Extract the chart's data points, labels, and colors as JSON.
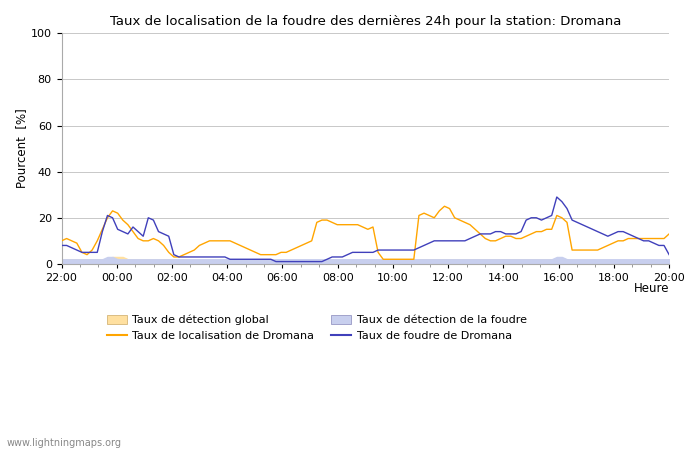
{
  "title": "Taux de localisation de la foudre des dernières 24h pour la station: Dromana",
  "xlabel": "Heure",
  "ylabel": "Pourcent  [%]",
  "ylim": [
    0,
    100
  ],
  "yticks": [
    0,
    20,
    40,
    60,
    80,
    100
  ],
  "xtick_labels": [
    "22:00",
    "00:00",
    "02:00",
    "04:00",
    "06:00",
    "08:00",
    "10:00",
    "12:00",
    "14:00",
    "16:00",
    "18:00",
    "20:00"
  ],
  "watermark": "www.lightningmaps.org",
  "bg_color": "#ffffff",
  "plot_bg_color": "#ffffff",
  "grid_color": "#c8c8c8",
  "orange_line_color": "#ffa500",
  "blue_line_color": "#4040bb",
  "orange_fill_color": "#ffe0a0",
  "blue_fill_color": "#c8cfee",
  "legend_items": [
    {
      "label": "Taux de détection global",
      "type": "fill",
      "color": "#ffe0a0"
    },
    {
      "label": "Taux de localisation de Dromana",
      "type": "line",
      "color": "#ffa500"
    },
    {
      "label": "Taux de détection de la foudre",
      "type": "fill",
      "color": "#c8cfee"
    },
    {
      "label": "Taux de foudre de Dromana",
      "type": "line",
      "color": "#4040bb"
    }
  ],
  "n_points": 120,
  "hours_total": 26,
  "orange_line": [
    10,
    11,
    10,
    9,
    5,
    4,
    6,
    10,
    15,
    20,
    23,
    22,
    19,
    17,
    14,
    11,
    10,
    10,
    11,
    10,
    8,
    5,
    3,
    3,
    4,
    5,
    6,
    8,
    9,
    10,
    10,
    10,
    10,
    10,
    9,
    8,
    7,
    6,
    5,
    4,
    4,
    4,
    4,
    5,
    5,
    6,
    7,
    8,
    9,
    10,
    18,
    19,
    19,
    18,
    17,
    17,
    17,
    17,
    17,
    16,
    15,
    16,
    5,
    2,
    2,
    2,
    2,
    2,
    2,
    2,
    21,
    22,
    21,
    20,
    23,
    25,
    24,
    20,
    19,
    18,
    17,
    15,
    13,
    11,
    10,
    10,
    11,
    12,
    12,
    11,
    11,
    12,
    13,
    14,
    14,
    15,
    15,
    21,
    20,
    18,
    6,
    6,
    6,
    6,
    6,
    6,
    7,
    8,
    9,
    10,
    10,
    11,
    11,
    11,
    11,
    11,
    11,
    11,
    11,
    13
  ],
  "blue_line": [
    8,
    8,
    7,
    6,
    5,
    5,
    5,
    5,
    14,
    21,
    20,
    15,
    14,
    13,
    16,
    14,
    12,
    20,
    19,
    14,
    13,
    12,
    4,
    3,
    3,
    3,
    3,
    3,
    3,
    3,
    3,
    3,
    3,
    2,
    2,
    2,
    2,
    2,
    2,
    2,
    2,
    2,
    1,
    1,
    1,
    1,
    1,
    1,
    1,
    1,
    1,
    1,
    2,
    3,
    3,
    3,
    4,
    5,
    5,
    5,
    5,
    5,
    6,
    6,
    6,
    6,
    6,
    6,
    6,
    6,
    7,
    8,
    9,
    10,
    10,
    10,
    10,
    10,
    10,
    10,
    11,
    12,
    13,
    13,
    13,
    14,
    14,
    13,
    13,
    13,
    14,
    19,
    20,
    20,
    19,
    20,
    21,
    29,
    27,
    24,
    19,
    18,
    17,
    16,
    15,
    14,
    13,
    12,
    13,
    14,
    14,
    13,
    12,
    11,
    10,
    10,
    9,
    8,
    8,
    4
  ],
  "orange_fill": [
    2,
    2,
    2,
    2,
    2,
    2,
    2,
    2,
    2,
    2,
    3,
    3,
    3,
    2,
    2,
    2,
    2,
    2,
    2,
    2,
    2,
    2,
    1,
    1,
    1,
    1,
    1,
    1,
    1,
    1,
    1,
    1,
    1,
    1,
    1,
    1,
    1,
    1,
    1,
    1,
    1,
    1,
    1,
    1,
    1,
    1,
    1,
    1,
    1,
    1,
    1,
    1,
    1,
    1,
    1,
    1,
    1,
    1,
    1,
    1,
    1,
    1,
    1,
    1,
    1,
    1,
    1,
    1,
    1,
    1,
    2,
    2,
    2,
    2,
    2,
    2,
    2,
    2,
    2,
    2,
    2,
    2,
    2,
    2,
    2,
    2,
    2,
    2,
    2,
    2,
    2,
    2,
    2,
    2,
    2,
    2,
    2,
    2,
    2,
    2,
    1,
    1,
    1,
    1,
    1,
    1,
    1,
    1,
    1,
    1,
    1,
    1,
    1,
    1,
    1,
    1,
    1,
    1,
    1,
    2
  ],
  "blue_fill": [
    2,
    2,
    2,
    2,
    2,
    2,
    2,
    2,
    2,
    3,
    3,
    2,
    2,
    2,
    2,
    2,
    2,
    2,
    2,
    2,
    2,
    2,
    2,
    2,
    2,
    2,
    2,
    2,
    2,
    2,
    2,
    2,
    2,
    2,
    2,
    2,
    2,
    2,
    2,
    2,
    2,
    2,
    2,
    2,
    2,
    2,
    2,
    2,
    2,
    2,
    2,
    2,
    2,
    2,
    2,
    2,
    2,
    2,
    2,
    2,
    2,
    2,
    2,
    2,
    2,
    2,
    2,
    2,
    2,
    2,
    2,
    2,
    2,
    2,
    2,
    2,
    2,
    2,
    2,
    2,
    2,
    2,
    2,
    2,
    2,
    2,
    2,
    2,
    2,
    2,
    2,
    2,
    2,
    2,
    2,
    2,
    2,
    3,
    3,
    2,
    2,
    2,
    2,
    2,
    2,
    2,
    2,
    2,
    2,
    2,
    2,
    2,
    2,
    2,
    2,
    2,
    2,
    2,
    2,
    2
  ]
}
